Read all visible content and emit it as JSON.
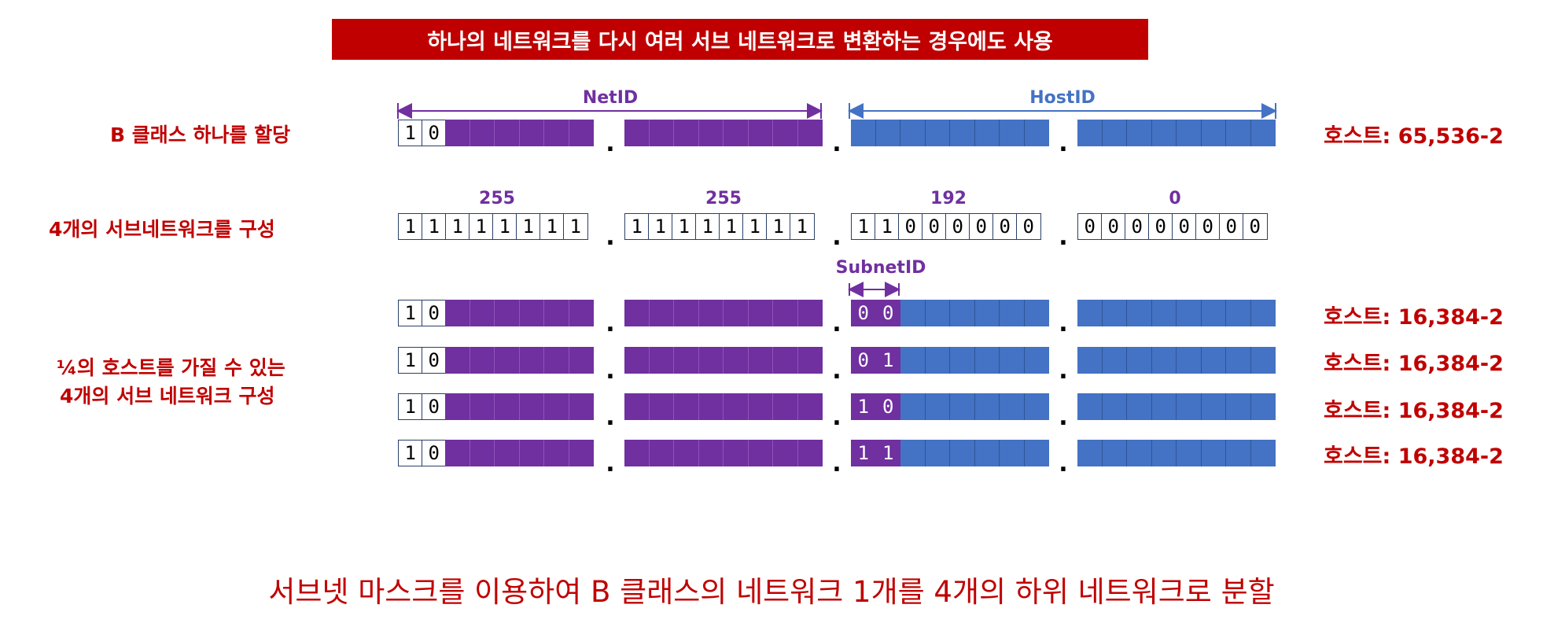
{
  "banner": "하나의 네트워크를 다시 여러 서브 네트워크로 변환하는 경우에도 사용",
  "net_id_label": "NetID",
  "host_id_label": "HostID",
  "subnet_id_label": "SubnetID",
  "rows": {
    "class_b": {
      "label": "B 클래스 하나를 할당",
      "host_count": "호스트: 65,536-2",
      "octets": [
        [
          "1",
          "0",
          "",
          "",
          "",
          "",
          "",
          ""
        ],
        [
          "",
          "",
          "",
          "",
          "",
          "",
          "",
          ""
        ],
        [
          "",
          "",
          "",
          "",
          "",
          "",
          "",
          ""
        ],
        [
          "",
          "",
          "",
          "",
          "",
          "",
          "",
          ""
        ]
      ]
    },
    "mask": {
      "label": "4개의 서브네트워크를 구성",
      "decimals": [
        "255",
        "255",
        "192",
        "0"
      ],
      "octets": [
        [
          "1",
          "1",
          "1",
          "1",
          "1",
          "1",
          "1",
          "1"
        ],
        [
          "1",
          "1",
          "1",
          "1",
          "1",
          "1",
          "1",
          "1"
        ],
        [
          "1",
          "1",
          "0",
          "0",
          "0",
          "0",
          "0",
          "0"
        ],
        [
          "0",
          "0",
          "0",
          "0",
          "0",
          "0",
          "0",
          "0"
        ]
      ]
    },
    "subnets": {
      "label_line1": "¼의 호스트를 가질 수 있는",
      "label_line2": "4개의 서브 네트워크 구성",
      "items": [
        {
          "prefix": [
            "1",
            "0"
          ],
          "subnet_bits": [
            "0",
            "0"
          ],
          "host_count": "호스트: 16,384-2"
        },
        {
          "prefix": [
            "1",
            "0"
          ],
          "subnet_bits": [
            "0",
            "1"
          ],
          "host_count": "호스트: 16,384-2"
        },
        {
          "prefix": [
            "1",
            "0"
          ],
          "subnet_bits": [
            "1",
            "0"
          ],
          "host_count": "호스트: 16,384-2"
        },
        {
          "prefix": [
            "1",
            "0"
          ],
          "subnet_bits": [
            "1",
            "1"
          ],
          "host_count": "호스트: 16,384-2"
        }
      ]
    }
  },
  "footer": "서브넷 마스크를 이용하여 B 클래스의 네트워크 1개를 4개의 하위 네트워크로 분할",
  "colors": {
    "red": "#c00000",
    "purple": "#7030a0",
    "blue": "#4472c4",
    "cell_border": "#2a3f66"
  }
}
